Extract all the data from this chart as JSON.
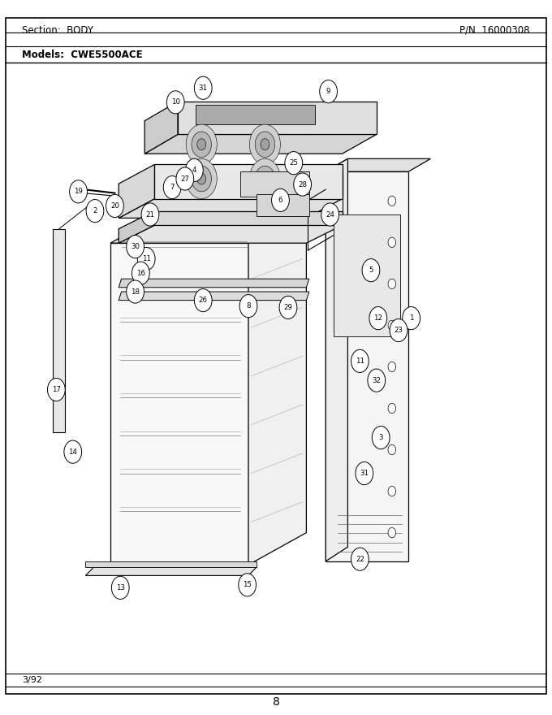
{
  "title_section": "Section:  BODY",
  "title_pn": "P/N  16000308",
  "title_model": "Models:  CWE5500ACE",
  "footer_date": "3/92",
  "footer_page": "8",
  "bg_color": "#ffffff",
  "border_color": "#000000",
  "text_color": "#000000",
  "figsize": [
    6.8,
    8.8
  ],
  "dpi": 100
}
